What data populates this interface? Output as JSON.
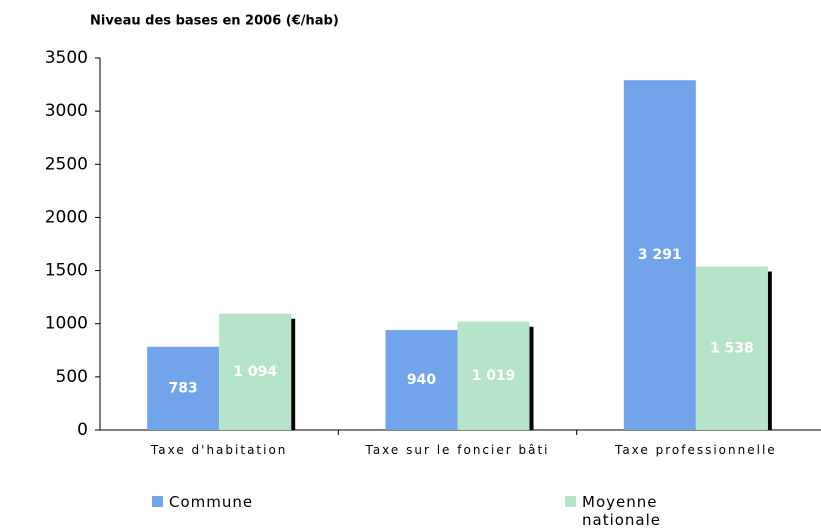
{
  "chart_data": {
    "type": "bar",
    "title": "Niveau des bases en 2006 (€/hab)",
    "categories": [
      "Taxe d'habitation",
      "Taxe sur le foncier bâti",
      "Taxe professionnelle"
    ],
    "series": [
      {
        "name": "Commune",
        "color": "#72a4ec",
        "values": [
          783,
          940,
          3291
        ],
        "value_labels": [
          "783",
          "940",
          "3 291"
        ]
      },
      {
        "name": "Moyenne nationale",
        "color": "#b6e4c9",
        "values": [
          1094,
          1019,
          1538
        ],
        "value_labels": [
          "1 094",
          "1 019",
          "1 538"
        ]
      }
    ],
    "ylim": [
      0,
      3500
    ],
    "yticks": [
      0,
      500,
      1000,
      1500,
      2000,
      2500,
      3000,
      3500
    ],
    "grid": false
  }
}
